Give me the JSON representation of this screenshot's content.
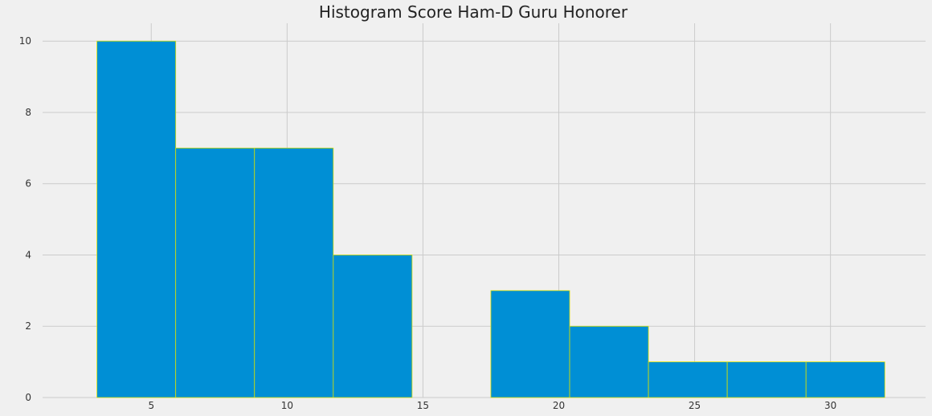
{
  "chart_data": {
    "type": "bar",
    "title": "Histogram Score Ham-D Guru Honorer",
    "xlabel": "",
    "ylabel": "",
    "bin_edges": [
      3.0,
      5.9,
      8.8,
      11.7,
      14.6,
      17.5,
      20.4,
      23.3,
      26.2,
      29.1,
      32.0
    ],
    "values": [
      10,
      7,
      7,
      4,
      0,
      3,
      2,
      1,
      1,
      1
    ],
    "xlim": [
      1,
      33.5
    ],
    "ylim": [
      0,
      10.5
    ],
    "xticks": [
      5,
      10,
      15,
      20,
      25,
      30
    ],
    "yticks": [
      0,
      2,
      4,
      6,
      8,
      10
    ],
    "grid": true,
    "bar_color": "#008fd5",
    "edge_color": "#d9e000",
    "background_color": "#f0f0f0"
  }
}
